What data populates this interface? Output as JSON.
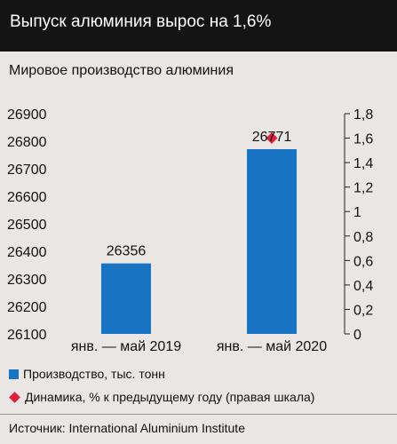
{
  "header": {
    "title": "Выпуск алюминия вырос на 1,6%"
  },
  "legend": {
    "bar_label": "Производство, тыс. тонн",
    "point_label": "Динамика, % к предыдущему году (правая шкала)"
  },
  "footer": {
    "source": "Источник: International Aluminium Institute"
  },
  "colors": {
    "bar": "#1873c2",
    "point": "#e01f3d",
    "header_bg": "#141414",
    "background": "#e9e6e4"
  },
  "chart_data": {
    "type": "bar",
    "title": "Мировое производство алюминия",
    "categories": [
      "янв. — май 2019",
      "янв. — май 2020"
    ],
    "series": [
      {
        "type": "bar",
        "axis": "left",
        "values": [
          26356,
          26771
        ],
        "data_labels": [
          "26356",
          "26771"
        ]
      },
      {
        "type": "scatter",
        "axis": "right",
        "marker": "diamond",
        "values": [
          null,
          1.6
        ]
      }
    ],
    "y_left": {
      "ylim": [
        26100,
        26900
      ],
      "ticks": [
        26100,
        26200,
        26300,
        26400,
        26500,
        26600,
        26700,
        26800,
        26900
      ],
      "tick_labels": [
        "26100",
        "26200",
        "26300",
        "26400",
        "26500",
        "26600",
        "26700",
        "26800",
        "26900"
      ]
    },
    "y_right": {
      "ylim": [
        0,
        1.8
      ],
      "ticks": [
        0,
        0.2,
        0.4,
        0.6,
        0.8,
        1.0,
        1.2,
        1.4,
        1.6,
        1.8
      ],
      "tick_labels": [
        "0",
        "0,2",
        "0,4",
        "0,6",
        "0,8",
        "1",
        "1,2",
        "1,4",
        "1,6",
        "1,8"
      ]
    },
    "grid": false,
    "legend_position": "bottom"
  }
}
